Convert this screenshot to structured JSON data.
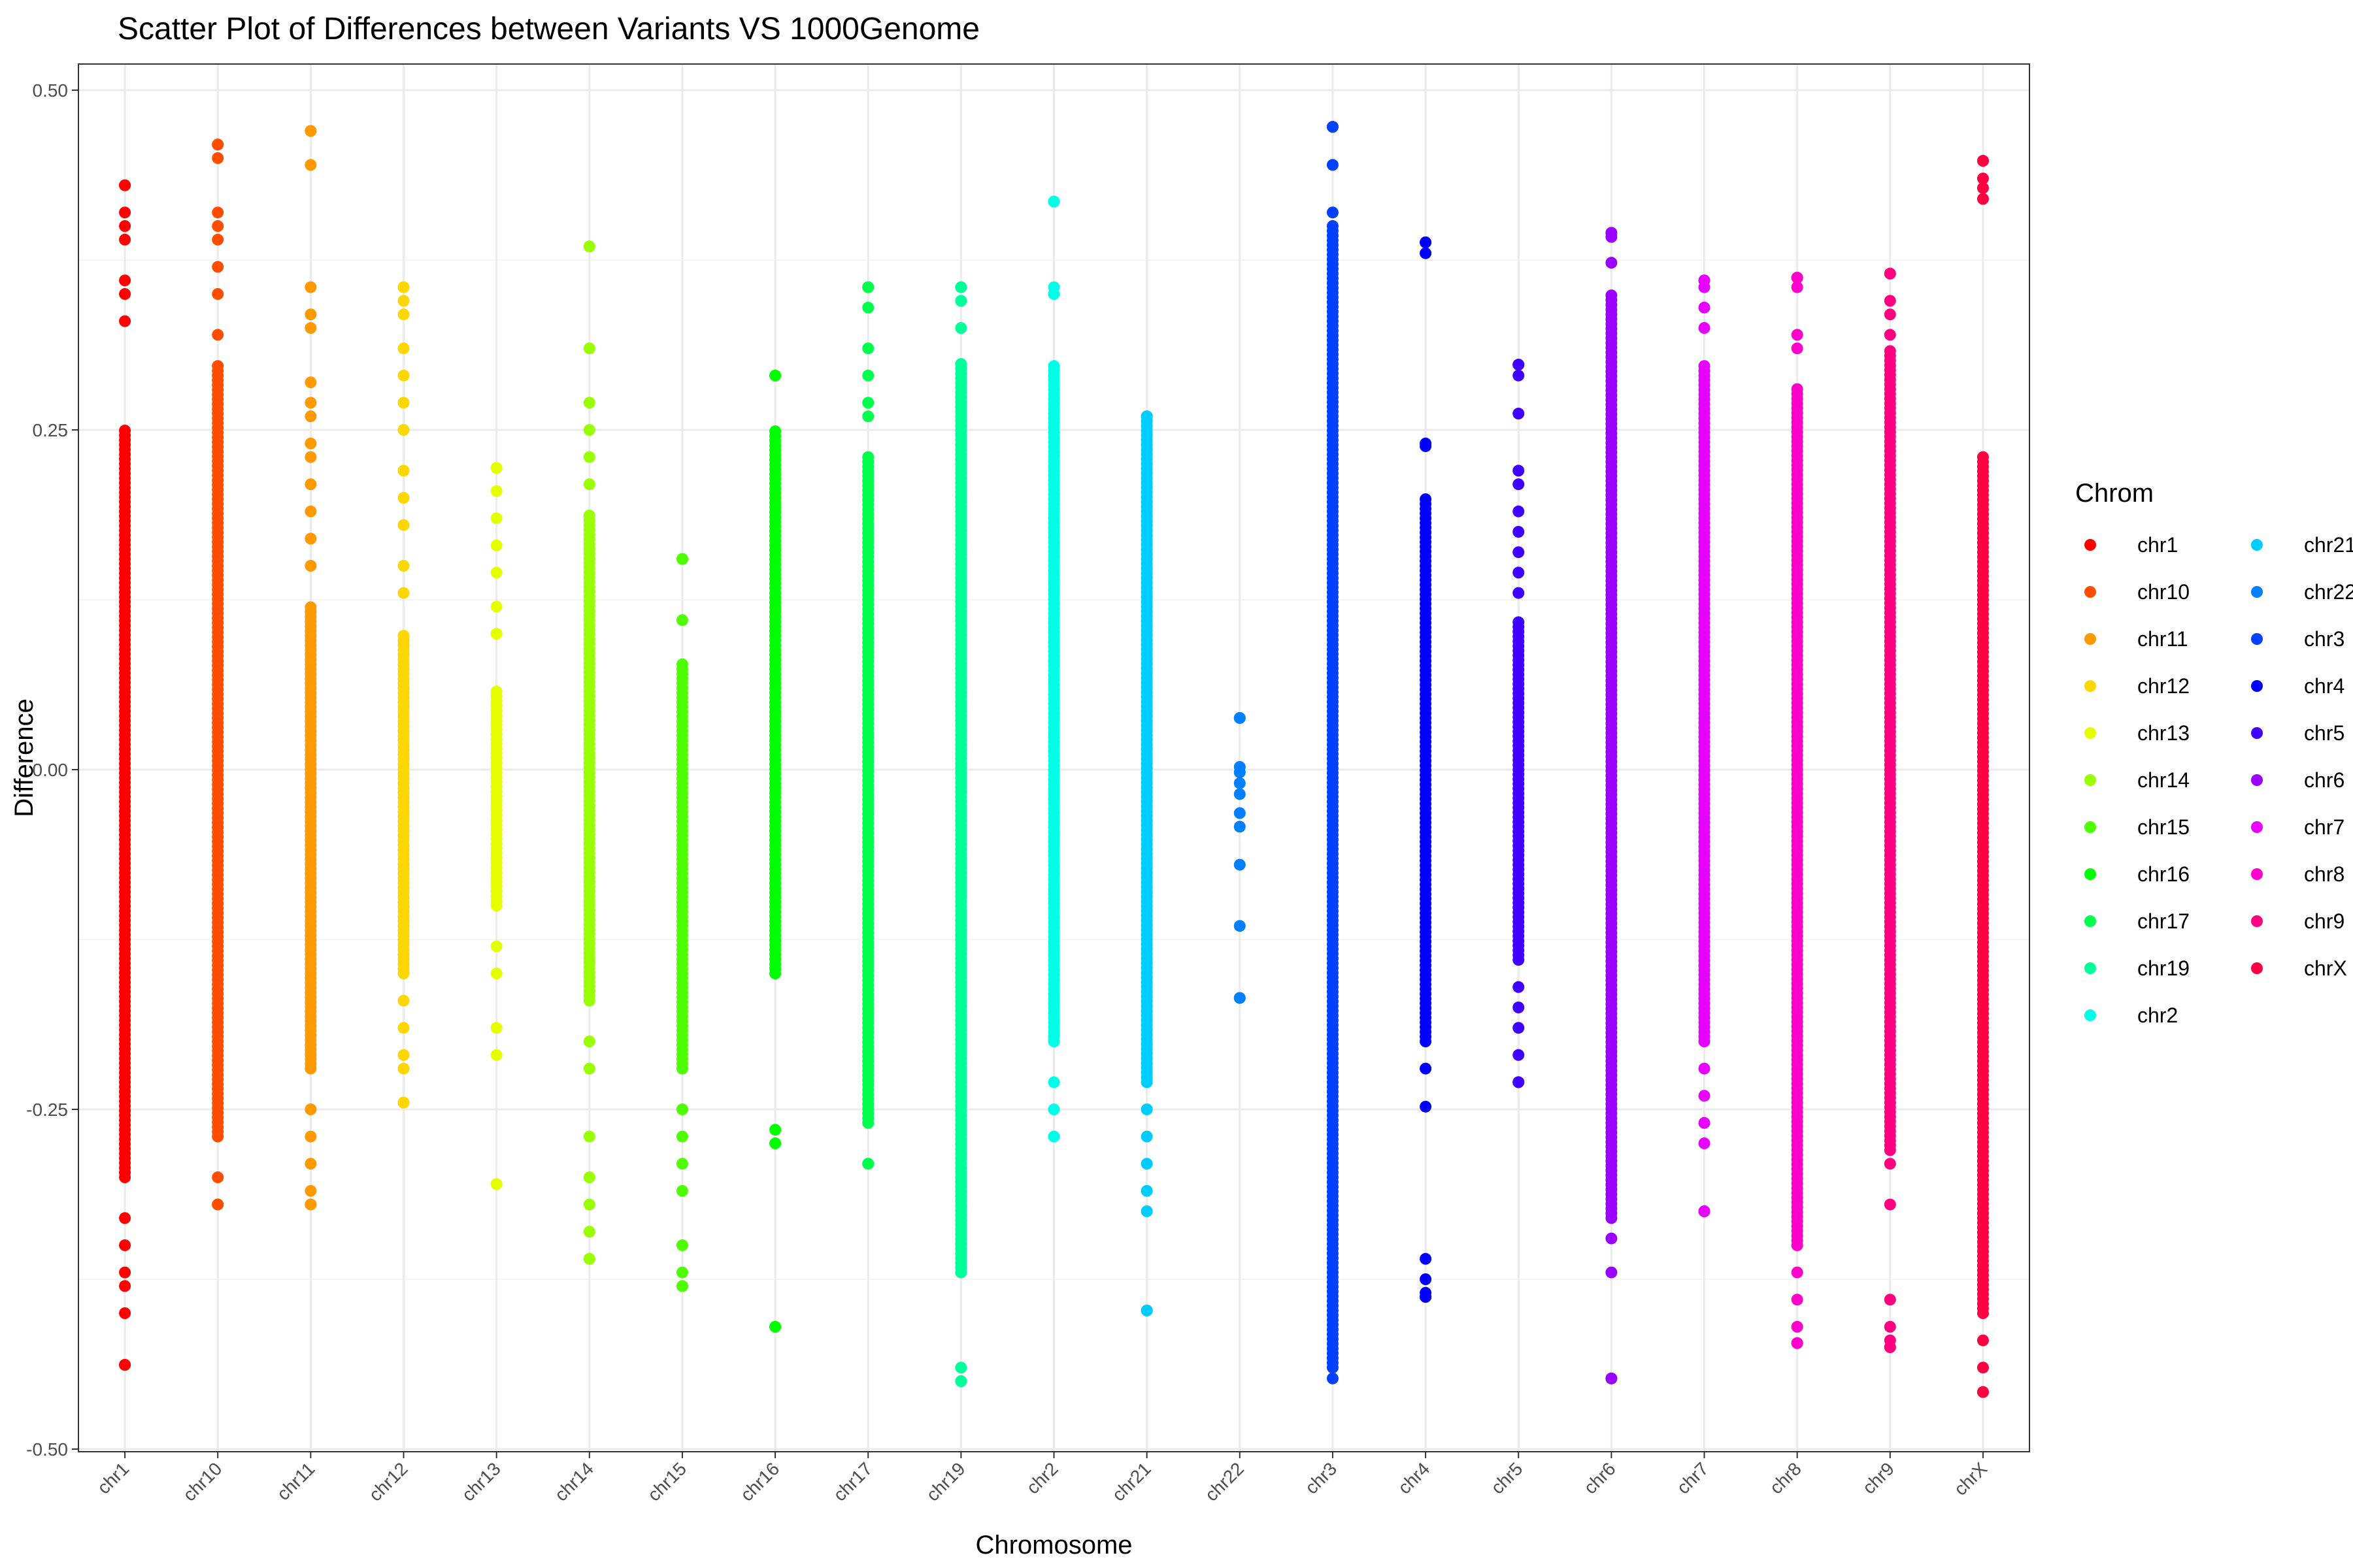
{
  "chart_data": {
    "type": "scatter",
    "title": "Scatter Plot of Differences between Variants VS 1000Genome",
    "xlabel": "Chromosome",
    "ylabel": "Difference",
    "ylim": [
      -0.5,
      0.5
    ],
    "yticks": [
      "0.50",
      "0.25",
      "0.00",
      "-0.25",
      "-0.50"
    ],
    "grid": true,
    "legend_title": "Chrom",
    "legend_position": "right",
    "categories": [
      "chr1",
      "chr10",
      "chr11",
      "chr12",
      "chr13",
      "chr14",
      "chr15",
      "chr16",
      "chr17",
      "chr19",
      "chr2",
      "chr21",
      "chr22",
      "chr3",
      "chr4",
      "chr5",
      "chr6",
      "chr7",
      "chr8",
      "chr9",
      "chrX"
    ],
    "series": [
      {
        "name": "chr1",
        "color": "#ff0000",
        "min": -0.438,
        "max": 0.43,
        "dense_min": -0.3,
        "dense_max": 0.25,
        "outliers": [
          0.43,
          0.41,
          0.4,
          0.39,
          0.36,
          0.35,
          0.33,
          -0.33,
          -0.35,
          -0.37,
          -0.38,
          -0.4,
          -0.438
        ]
      },
      {
        "name": "chr10",
        "color": "#ff4d00",
        "min": -0.32,
        "max": 0.46,
        "dense_min": -0.27,
        "dense_max": 0.3,
        "outliers": [
          0.46,
          0.45,
          0.41,
          0.4,
          0.39,
          0.37,
          0.35,
          0.32,
          -0.3,
          -0.32
        ]
      },
      {
        "name": "chr11",
        "color": "#ff9900",
        "min": -0.32,
        "max": 0.47,
        "dense_min": -0.22,
        "dense_max": 0.12,
        "outliers": [
          0.47,
          0.445,
          0.355,
          0.335,
          0.325,
          0.285,
          0.27,
          0.26,
          0.24,
          0.23,
          0.21,
          0.19,
          0.17,
          0.15,
          -0.25,
          -0.27,
          -0.29,
          -0.31,
          -0.32
        ]
      },
      {
        "name": "chr12",
        "color": "#ffd700",
        "min": -0.245,
        "max": 0.355,
        "dense_min": -0.15,
        "dense_max": 0.1,
        "outliers": [
          0.355,
          0.345,
          0.335,
          0.31,
          0.29,
          0.27,
          0.25,
          0.22,
          0.2,
          0.18,
          0.15,
          0.13,
          -0.17,
          -0.19,
          -0.21,
          -0.22,
          -0.245
        ]
      },
      {
        "name": "chr13",
        "color": "#e6ff00",
        "min": -0.305,
        "max": 0.222,
        "dense_min": -0.1,
        "dense_max": 0.06,
        "outliers": [
          0.222,
          0.205,
          0.185,
          0.165,
          0.145,
          0.12,
          0.1,
          -0.13,
          -0.15,
          -0.19,
          -0.21,
          -0.305
        ]
      },
      {
        "name": "chr14",
        "color": "#99ff00",
        "min": -0.36,
        "max": 0.385,
        "dense_min": -0.17,
        "dense_max": 0.19,
        "outliers": [
          0.385,
          0.31,
          0.27,
          0.25,
          0.23,
          0.21,
          -0.2,
          -0.22,
          -0.27,
          -0.3,
          -0.32,
          -0.34,
          -0.36
        ]
      },
      {
        "name": "chr15",
        "color": "#4dff00",
        "min": -0.38,
        "max": 0.155,
        "dense_min": -0.22,
        "dense_max": 0.08,
        "outliers": [
          0.155,
          0.11,
          -0.25,
          -0.27,
          -0.29,
          -0.31,
          -0.35,
          -0.37,
          -0.38
        ]
      },
      {
        "name": "chr16",
        "color": "#00ff00",
        "min": -0.41,
        "max": 0.29,
        "dense_min": -0.15,
        "dense_max": 0.25,
        "outliers": [
          0.29,
          -0.265,
          -0.275,
          -0.41
        ]
      },
      {
        "name": "chr17",
        "color": "#00ff4d",
        "min": -0.29,
        "max": 0.355,
        "dense_min": -0.26,
        "dense_max": 0.23,
        "outliers": [
          0.355,
          0.34,
          0.31,
          0.29,
          0.27,
          0.26,
          -0.29
        ]
      },
      {
        "name": "chr19",
        "color": "#00ff99",
        "min": -0.45,
        "max": 0.355,
        "dense_min": -0.37,
        "dense_max": 0.3,
        "outliers": [
          0.355,
          0.345,
          0.325,
          -0.44,
          -0.45
        ]
      },
      {
        "name": "chr2",
        "color": "#00ffe6",
        "min": -0.27,
        "max": 0.418,
        "dense_min": -0.2,
        "dense_max": 0.3,
        "outliers": [
          0.418,
          0.355,
          0.35,
          -0.23,
          -0.25,
          -0.27
        ]
      },
      {
        "name": "chr21",
        "color": "#00ccff",
        "min": -0.398,
        "max": 0.26,
        "dense_min": -0.23,
        "dense_max": 0.26,
        "outliers": [
          -0.25,
          -0.27,
          -0.29,
          -0.31,
          -0.325,
          -0.398
        ]
      },
      {
        "name": "chr22",
        "color": "#0080ff",
        "min": -0.168,
        "max": 0.038,
        "dense_min": 0,
        "dense_max": 0,
        "outliers": [
          0.038,
          0.002,
          -0.002,
          -0.01,
          -0.018,
          -0.032,
          -0.042,
          -0.07,
          -0.115,
          -0.168
        ]
      },
      {
        "name": "chr3",
        "color": "#0040ff",
        "min": -0.448,
        "max": 0.473,
        "dense_min": -0.44,
        "dense_max": 0.4,
        "outliers": [
          0.473,
          0.445,
          0.41
        ]
      },
      {
        "name": "chr4",
        "color": "#0000ff",
        "min": -0.388,
        "max": 0.388,
        "dense_min": -0.2,
        "dense_max": 0.2,
        "outliers": [
          0.388,
          0.38,
          0.24,
          0.238,
          -0.22,
          -0.248,
          -0.36,
          -0.375,
          -0.385,
          -0.388
        ]
      },
      {
        "name": "chr5",
        "color": "#4000ff",
        "min": -0.23,
        "max": 0.298,
        "dense_min": -0.14,
        "dense_max": 0.11,
        "outliers": [
          0.298,
          0.29,
          0.262,
          0.22,
          0.21,
          0.19,
          0.175,
          0.16,
          0.145,
          0.13,
          -0.16,
          -0.175,
          -0.19,
          -0.21,
          -0.23
        ]
      },
      {
        "name": "chr6",
        "color": "#9900ff",
        "min": -0.448,
        "max": 0.395,
        "dense_min": -0.33,
        "dense_max": 0.35,
        "outliers": [
          0.395,
          0.392,
          0.373,
          -0.345,
          -0.37,
          -0.448
        ]
      },
      {
        "name": "chr7",
        "color": "#e600ff",
        "min": -0.325,
        "max": 0.36,
        "dense_min": -0.2,
        "dense_max": 0.3,
        "outliers": [
          0.36,
          0.355,
          0.34,
          0.325,
          -0.22,
          -0.24,
          -0.26,
          -0.275,
          -0.325
        ]
      },
      {
        "name": "chr8",
        "color": "#ff00cc",
        "min": -0.422,
        "max": 0.362,
        "dense_min": -0.35,
        "dense_max": 0.28,
        "outliers": [
          0.362,
          0.355,
          0.32,
          0.31,
          -0.37,
          -0.39,
          -0.41,
          -0.422
        ]
      },
      {
        "name": "chr9",
        "color": "#ff0080",
        "min": -0.425,
        "max": 0.365,
        "dense_min": -0.28,
        "dense_max": 0.31,
        "outliers": [
          0.365,
          0.345,
          0.335,
          0.32,
          -0.29,
          -0.32,
          -0.39,
          -0.41,
          -0.42,
          -0.425
        ]
      },
      {
        "name": "chrX",
        "color": "#ff0040",
        "min": -0.458,
        "max": 0.448,
        "dense_min": -0.4,
        "dense_max": 0.23,
        "outliers": [
          0.448,
          0.435,
          0.428,
          0.42,
          -0.42,
          -0.44,
          -0.458
        ]
      }
    ]
  }
}
